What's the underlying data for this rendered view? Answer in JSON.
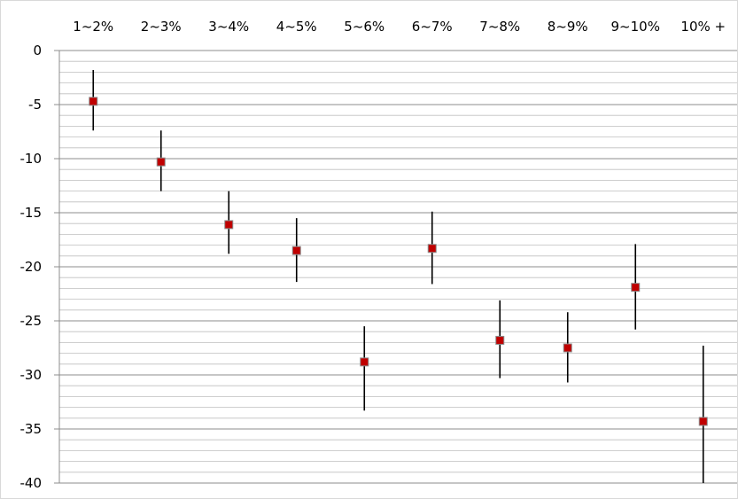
{
  "chart_data": {
    "type": "scatter",
    "subtype": "error-bar",
    "categories": [
      "1~2%",
      "2~3%",
      "3~4%",
      "4~5%",
      "5~6%",
      "6~7%",
      "7~8%",
      "8~9%",
      "9~10%",
      "10% +"
    ],
    "series": [
      {
        "values": [
          -4.7,
          -10.3,
          -16.1,
          -18.5,
          -28.8,
          -18.3,
          -26.8,
          -27.5,
          -21.9,
          -34.3
        ],
        "error_low": [
          -7.4,
          -13.0,
          -18.8,
          -21.4,
          -33.3,
          -21.6,
          -30.3,
          -30.7,
          -25.8,
          -40.0
        ],
        "error_high": [
          -1.8,
          -7.4,
          -13.0,
          -15.5,
          -25.5,
          -14.9,
          -23.1,
          -24.2,
          -17.9,
          -27.3
        ],
        "marker_color": "#c00000"
      }
    ],
    "yticks": [
      "0",
      "-5",
      "-10",
      "-15",
      "-20",
      "-25",
      "-30",
      "-35",
      "-40"
    ],
    "ylim": [
      -40,
      0
    ],
    "x_axis_position": "top",
    "grid": true,
    "legend": "none"
  }
}
